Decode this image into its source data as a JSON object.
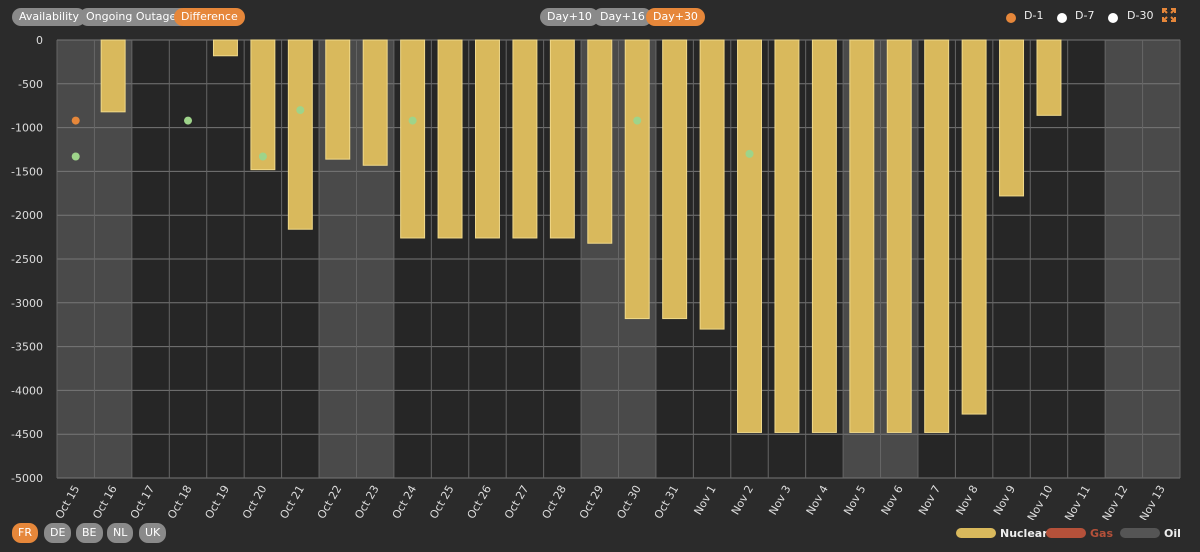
{
  "toolbar": {
    "views": [
      {
        "label": "Availability",
        "active": false
      },
      {
        "label": "Ongoing Outages",
        "active": false
      },
      {
        "label": "Difference",
        "active": true
      }
    ],
    "horizons": [
      {
        "label": "Day+10",
        "active": false
      },
      {
        "label": "Day+16",
        "active": false
      },
      {
        "label": "Day+30",
        "active": true
      }
    ],
    "compare_legend": [
      {
        "label": "D-1",
        "color": "#e6873a"
      },
      {
        "label": "D-7",
        "color": "#ffffff"
      },
      {
        "label": "D-30",
        "color": "#ffffff"
      }
    ],
    "expand_icon": "expand-icon"
  },
  "countries": [
    {
      "label": "FR",
      "active": true
    },
    {
      "label": "DE",
      "active": false
    },
    {
      "label": "BE",
      "active": false
    },
    {
      "label": "NL",
      "active": false
    },
    {
      "label": "UK",
      "active": false
    }
  ],
  "fuel_legend": [
    {
      "label": "Nuclear",
      "color": "#d9b95c"
    },
    {
      "label": "Gas",
      "color": "#b5513a"
    },
    {
      "label": "Oil",
      "color": "#555555"
    }
  ],
  "chart_data": {
    "type": "bar",
    "categories": [
      "Oct 15",
      "Oct 16",
      "Oct 17",
      "Oct 18",
      "Oct 19",
      "Oct 20",
      "Oct 21",
      "Oct 22",
      "Oct 23",
      "Oct 24",
      "Oct 25",
      "Oct 26",
      "Oct 27",
      "Oct 28",
      "Oct 29",
      "Oct 30",
      "Oct 31",
      "Nov 1",
      "Nov 2",
      "Nov 3",
      "Nov 4",
      "Nov 5",
      "Nov 6",
      "Nov 7",
      "Nov 8",
      "Nov 9",
      "Nov 10",
      "Nov 11",
      "Nov 12",
      "Nov 13"
    ],
    "series": [
      {
        "name": "Nuclear",
        "values": [
          0,
          -820,
          0,
          0,
          -180,
          -1480,
          -2160,
          -1360,
          -1430,
          -2260,
          -2260,
          -2260,
          -2260,
          -2260,
          -2320,
          -3180,
          -3180,
          -3300,
          -4480,
          -4480,
          -4480,
          -4480,
          -4480,
          -4480,
          -4270,
          -1780,
          -860,
          0,
          0,
          0
        ]
      }
    ],
    "scatter_points": [
      {
        "category": "Oct 15",
        "value": -920,
        "color": "#e6873a"
      },
      {
        "category": "Oct 15",
        "value": -1330,
        "color": "#9ed48a"
      },
      {
        "category": "Oct 18",
        "value": -920,
        "color": "#9ed48a"
      },
      {
        "category": "Oct 20",
        "value": -1330,
        "color": "#9ed48a"
      },
      {
        "category": "Oct 21",
        "value": -800,
        "color": "#9ed48a"
      },
      {
        "category": "Oct 24",
        "value": -920,
        "color": "#9ed48a"
      },
      {
        "category": "Oct 30",
        "value": -920,
        "color": "#9ed48a"
      },
      {
        "category": "Nov 2",
        "value": -1300,
        "color": "#9ed48a"
      }
    ],
    "weekend_categories": [
      "Oct 15",
      "Oct 16",
      "Oct 22",
      "Oct 23",
      "Oct 29",
      "Oct 30",
      "Nov 5",
      "Nov 6",
      "Nov 12",
      "Nov 13"
    ],
    "yticks": [
      0,
      -500,
      -1000,
      -1500,
      -2000,
      -2500,
      -3000,
      -3500,
      -4000,
      -4500,
      -5000
    ],
    "ylim": [
      -5000,
      0
    ],
    "grid": true,
    "title": "",
    "xlabel": "",
    "ylabel": ""
  }
}
